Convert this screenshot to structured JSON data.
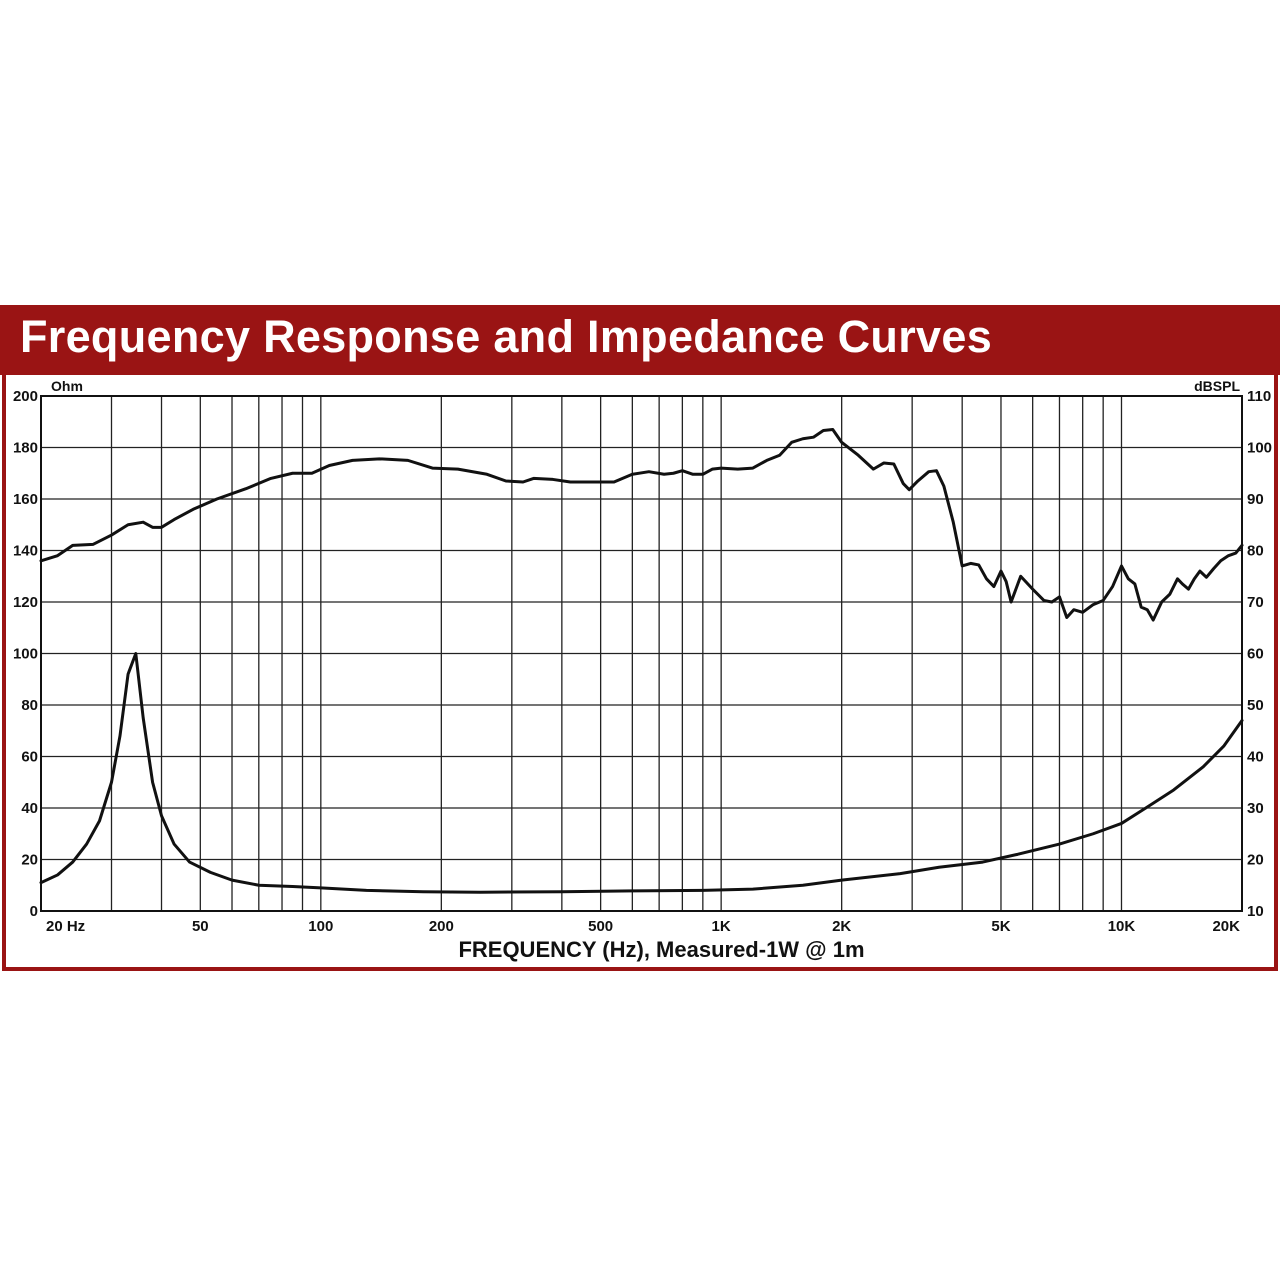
{
  "chart_data": {
    "type": "line",
    "title": "Frequency Response and Impedance Curves",
    "xlabel": "FREQUENCY (Hz), Measured-1W @ 1m",
    "x_scale": "log",
    "xlim": [
      20,
      20000
    ],
    "x_ticks": [
      {
        "value": 20,
        "label": "20 Hz"
      },
      {
        "value": 50,
        "label": "50"
      },
      {
        "value": 100,
        "label": "100"
      },
      {
        "value": 200,
        "label": "200"
      },
      {
        "value": 500,
        "label": "500"
      },
      {
        "value": 1000,
        "label": "1K"
      },
      {
        "value": 2000,
        "label": "2K"
      },
      {
        "value": 5000,
        "label": "5K"
      },
      {
        "value": 10000,
        "label": "10K"
      },
      {
        "value": 20000,
        "label": "20K"
      }
    ],
    "y_left": {
      "label": "Ohm",
      "lim": [
        0,
        200
      ],
      "ticks": [
        0,
        20,
        40,
        60,
        80,
        100,
        120,
        140,
        160,
        180,
        200
      ]
    },
    "y_right": {
      "label": "dBSPL",
      "lim": [
        10,
        110
      ],
      "ticks": [
        10,
        20,
        30,
        40,
        50,
        60,
        70,
        80,
        90,
        100,
        110
      ]
    },
    "grid": true,
    "series": [
      {
        "name": "Frequency Response (dBSPL)",
        "axis": "right",
        "points": [
          [
            20,
            78
          ],
          [
            22,
            79
          ],
          [
            24,
            81
          ],
          [
            27,
            81.2
          ],
          [
            30,
            83
          ],
          [
            33,
            85
          ],
          [
            36,
            85.5
          ],
          [
            38,
            84.5
          ],
          [
            40,
            84.5
          ],
          [
            43,
            86
          ],
          [
            48,
            88
          ],
          [
            55,
            90
          ],
          [
            65,
            92
          ],
          [
            75,
            94
          ],
          [
            85,
            95
          ],
          [
            95,
            95
          ],
          [
            105,
            96.5
          ],
          [
            120,
            97.5
          ],
          [
            140,
            97.8
          ],
          [
            165,
            97.5
          ],
          [
            190,
            96
          ],
          [
            220,
            95.8
          ],
          [
            260,
            94.8
          ],
          [
            290,
            93.5
          ],
          [
            320,
            93.3
          ],
          [
            340,
            94
          ],
          [
            380,
            93.8
          ],
          [
            420,
            93.3
          ],
          [
            480,
            93.3
          ],
          [
            540,
            93.3
          ],
          [
            600,
            94.8
          ],
          [
            660,
            95.3
          ],
          [
            720,
            94.8
          ],
          [
            760,
            95
          ],
          [
            800,
            95.5
          ],
          [
            850,
            94.8
          ],
          [
            900,
            94.8
          ],
          [
            950,
            95.8
          ],
          [
            1000,
            96
          ],
          [
            1100,
            95.8
          ],
          [
            1200,
            96
          ],
          [
            1300,
            97.5
          ],
          [
            1400,
            98.5
          ],
          [
            1500,
            101
          ],
          [
            1600,
            101.7
          ],
          [
            1700,
            102
          ],
          [
            1800,
            103.3
          ],
          [
            1900,
            103.5
          ],
          [
            2000,
            101
          ],
          [
            2200,
            98.5
          ],
          [
            2400,
            95.8
          ],
          [
            2550,
            97
          ],
          [
            2700,
            96.8
          ],
          [
            2850,
            93
          ],
          [
            2950,
            91.8
          ],
          [
            3100,
            93.5
          ],
          [
            3300,
            95.3
          ],
          [
            3450,
            95.5
          ],
          [
            3600,
            92.5
          ],
          [
            3800,
            85.5
          ],
          [
            4000,
            77
          ],
          [
            4200,
            77.5
          ],
          [
            4400,
            77.2
          ],
          [
            4600,
            74.5
          ],
          [
            4800,
            73
          ],
          [
            5000,
            76
          ],
          [
            5150,
            74
          ],
          [
            5300,
            70
          ],
          [
            5600,
            75
          ],
          [
            6000,
            72.5
          ],
          [
            6400,
            70.3
          ],
          [
            6700,
            70
          ],
          [
            7000,
            71
          ],
          [
            7300,
            67
          ],
          [
            7600,
            68.5
          ],
          [
            8000,
            68
          ],
          [
            8500,
            69.5
          ],
          [
            9000,
            70.3
          ],
          [
            9500,
            73
          ],
          [
            10000,
            77
          ],
          [
            10400,
            74.5
          ],
          [
            10800,
            73.5
          ],
          [
            11200,
            69
          ],
          [
            11600,
            68.5
          ],
          [
            12000,
            66.5
          ],
          [
            12600,
            70
          ],
          [
            13200,
            71.5
          ],
          [
            13800,
            74.5
          ],
          [
            14200,
            73.5
          ],
          [
            14700,
            72.5
          ],
          [
            15200,
            74.5
          ],
          [
            15700,
            76
          ],
          [
            16300,
            74.8
          ],
          [
            17000,
            76.5
          ],
          [
            17700,
            78
          ],
          [
            18500,
            79
          ],
          [
            19300,
            79.5
          ],
          [
            20000,
            81
          ]
        ]
      },
      {
        "name": "Impedance (Ohm)",
        "axis": "left",
        "points": [
          [
            20,
            11
          ],
          [
            22,
            14
          ],
          [
            24,
            19
          ],
          [
            26,
            26
          ],
          [
            28,
            35
          ],
          [
            30,
            50
          ],
          [
            31.5,
            68
          ],
          [
            33,
            92
          ],
          [
            34.5,
            100
          ],
          [
            36,
            75
          ],
          [
            38,
            50
          ],
          [
            40,
            37
          ],
          [
            43,
            26
          ],
          [
            47,
            19
          ],
          [
            53,
            15
          ],
          [
            60,
            12
          ],
          [
            70,
            10
          ],
          [
            85,
            9.5
          ],
          [
            100,
            9
          ],
          [
            130,
            8
          ],
          [
            180,
            7.5
          ],
          [
            250,
            7.3
          ],
          [
            400,
            7.5
          ],
          [
            600,
            7.8
          ],
          [
            900,
            8
          ],
          [
            1200,
            8.5
          ],
          [
            1600,
            10
          ],
          [
            2000,
            12
          ],
          [
            2800,
            14.5
          ],
          [
            3500,
            17
          ],
          [
            4500,
            19
          ],
          [
            5500,
            22
          ],
          [
            7000,
            26
          ],
          [
            8500,
            30
          ],
          [
            10000,
            34
          ],
          [
            11500,
            40
          ],
          [
            13500,
            47
          ],
          [
            16000,
            56
          ],
          [
            18000,
            64
          ],
          [
            20000,
            74
          ]
        ]
      }
    ]
  }
}
